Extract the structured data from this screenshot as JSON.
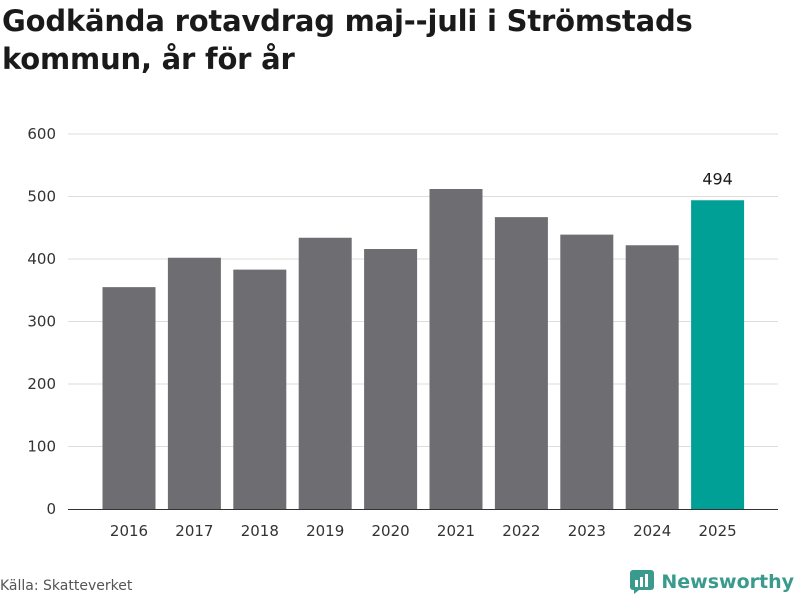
{
  "title": "Godkända rotavdrag maj--juli i Strömstads kommun, år för år",
  "source": "Källa: Skatteverket",
  "brand": {
    "name": "Newsworthy",
    "color": "#3a9a8e"
  },
  "colors": {
    "bar": "#6e6d72",
    "highlight": "#00a096"
  },
  "chart_data": {
    "type": "bar",
    "title": "Godkända rotavdrag maj--juli i Strömstads kommun, år för år",
    "xlabel": "",
    "ylabel": "",
    "categories": [
      "2016",
      "2017",
      "2018",
      "2019",
      "2020",
      "2021",
      "2022",
      "2023",
      "2024",
      "2025"
    ],
    "values": [
      355,
      402,
      383,
      434,
      416,
      512,
      467,
      439,
      422,
      494
    ],
    "highlight_index": 9,
    "data_labels": [
      null,
      null,
      null,
      null,
      null,
      null,
      null,
      null,
      null,
      "494"
    ],
    "ylim": [
      0,
      600
    ],
    "yticks": [
      0,
      100,
      200,
      300,
      400,
      500,
      600
    ],
    "grid": true,
    "legend": "none"
  }
}
